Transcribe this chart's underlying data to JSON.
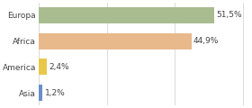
{
  "categories": [
    "Europa",
    "Africa",
    "America",
    "Asia"
  ],
  "values": [
    51.5,
    44.9,
    2.4,
    1.2
  ],
  "colors": [
    "#a8bc8f",
    "#e8b98a",
    "#e8c84a",
    "#6a8fc8"
  ],
  "labels": [
    "51,5%",
    "44,9%",
    "2,4%",
    "1,2%"
  ],
  "xlim": [
    0,
    62
  ],
  "background_color": "#ffffff",
  "bar_height": 0.62,
  "label_fontsize": 6.5,
  "tick_fontsize": 6.5
}
